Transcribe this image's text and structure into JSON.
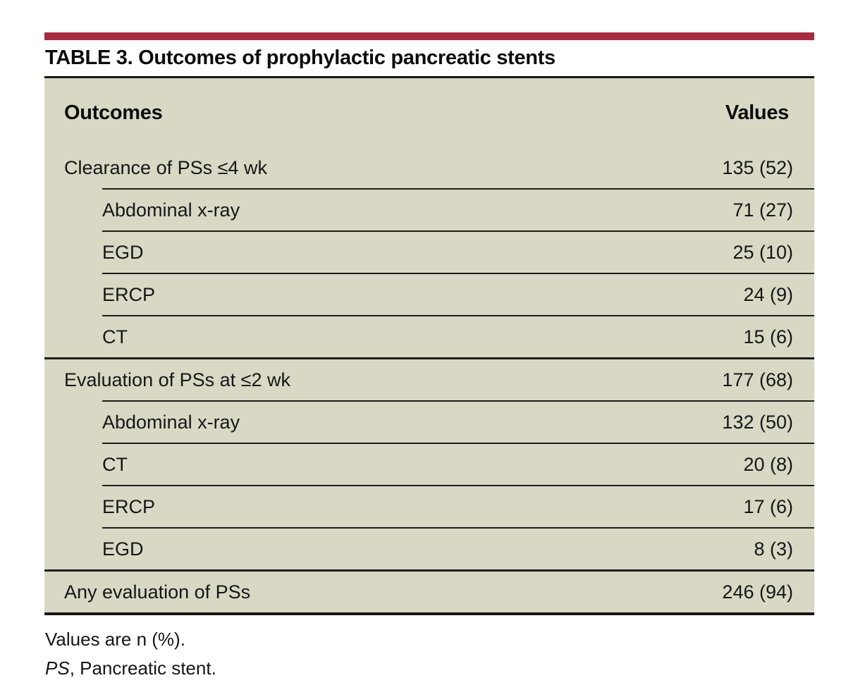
{
  "page": {
    "accent_bar_color": "#A72B40",
    "table_background_color": "#D9D8C5"
  },
  "table": {
    "title": "TABLE 3. Outcomes of prophylactic pancreatic stents",
    "columns": {
      "outcomes": "Outcomes",
      "values": "Values"
    },
    "rows": [
      {
        "label": "Clearance of PSs ≤4 wk",
        "value": "135 (52)",
        "level": 0
      },
      {
        "label": "Abdominal x-ray",
        "value": "71 (27)",
        "level": 1
      },
      {
        "label": "EGD",
        "value": "25 (10)",
        "level": 1
      },
      {
        "label": "ERCP",
        "value": "24 (9)",
        "level": 1
      },
      {
        "label": "CT",
        "value": "15 (6)",
        "level": 1
      },
      {
        "label": "Evaluation of PSs at ≤2 wk",
        "value": "177 (68)",
        "level": 0
      },
      {
        "label": "Abdominal x-ray",
        "value": "132 (50)",
        "level": 1
      },
      {
        "label": "CT",
        "value": "20 (8)",
        "level": 1
      },
      {
        "label": "ERCP",
        "value": "17 (6)",
        "level": 1
      },
      {
        "label": "EGD",
        "value": "8 (3)",
        "level": 1
      },
      {
        "label": "Any evaluation of PSs",
        "value": "246 (94)",
        "level": 0
      }
    ]
  },
  "footnotes": {
    "values_note": "Values are n (%).",
    "ps_abbrev": "PS",
    "ps_definition": ", Pancreatic stent."
  }
}
